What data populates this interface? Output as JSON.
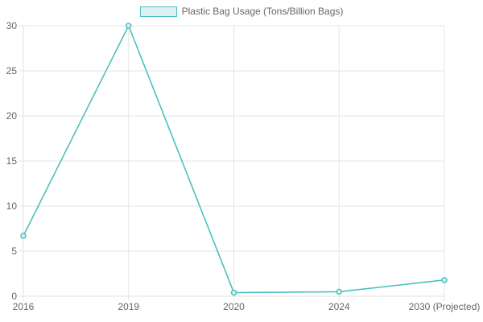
{
  "legend": {
    "label": "Plastic Bag Usage (Tons/Billion Bags)"
  },
  "chart_data": {
    "type": "line",
    "categories": [
      "2016",
      "2019",
      "2020",
      "2024",
      "2030 (Projected)"
    ],
    "series": [
      {
        "name": "Plastic Bag Usage (Tons/Billion Bags)",
        "values": [
          6.7,
          30,
          0.4,
          0.5,
          1.8
        ]
      }
    ],
    "title": "",
    "xlabel": "",
    "ylabel": "",
    "ylim": [
      0,
      30
    ],
    "yticks": [
      0,
      5,
      10,
      15,
      20,
      25,
      30
    ],
    "grid": true,
    "legend_position": "top",
    "colors": {
      "line": "#4bc0c0",
      "point_fill": "#ddf1f0",
      "legend_fill": "#ddf1f0",
      "legend_border": "#4bc0c0",
      "grid": "#e5e5e5",
      "axis": "#e0e0e0",
      "text": "#666666"
    }
  }
}
